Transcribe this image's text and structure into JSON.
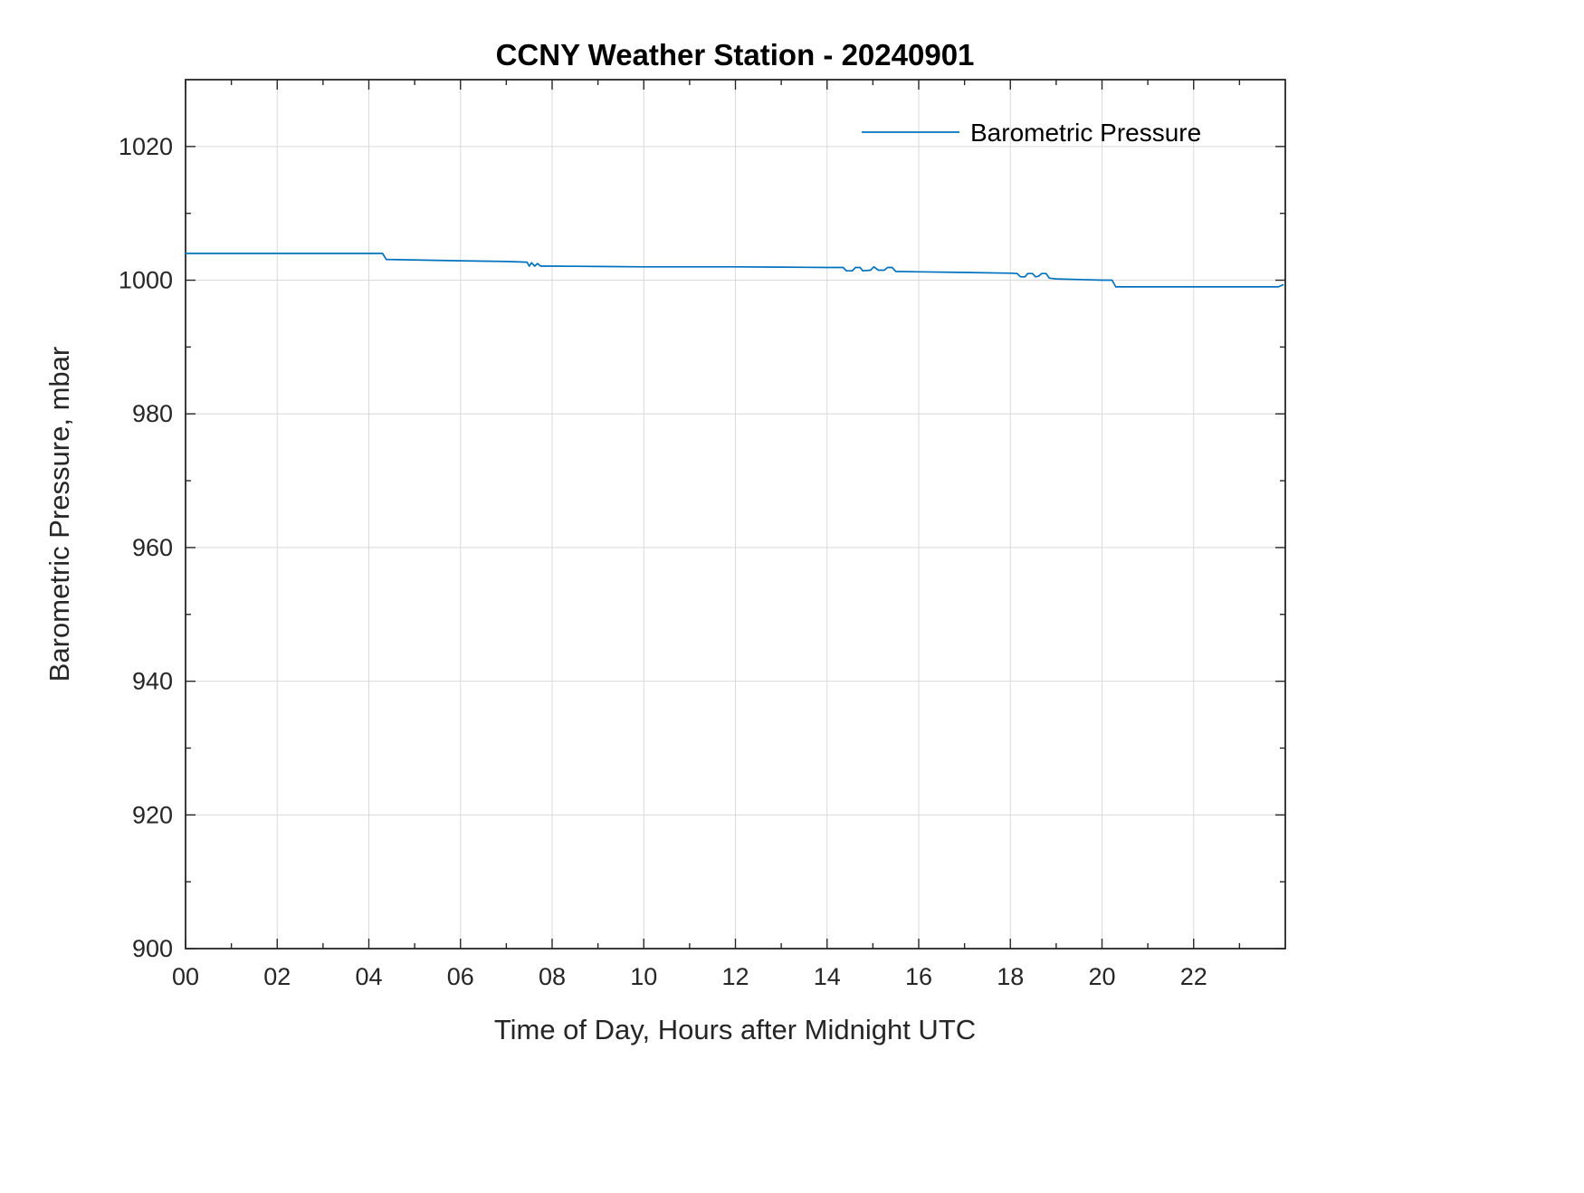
{
  "chart_data": {
    "type": "line",
    "title": "CCNY Weather Station - 20240901",
    "xlabel": "Time of Day, Hours after Midnight UTC",
    "ylabel": "Barometric Pressure, mbar",
    "xlim": [
      0,
      24
    ],
    "ylim": [
      900,
      1030
    ],
    "grid": true,
    "xticks": [
      0,
      2,
      4,
      6,
      8,
      10,
      12,
      14,
      16,
      18,
      20,
      22
    ],
    "xtick_labels": [
      "00",
      "02",
      "04",
      "06",
      "08",
      "10",
      "12",
      "14",
      "16",
      "18",
      "20",
      "22"
    ],
    "x_minor_ticks": [
      1,
      3,
      5,
      7,
      9,
      11,
      13,
      15,
      17,
      19,
      21,
      23
    ],
    "yticks": [
      900,
      920,
      940,
      960,
      980,
      1000,
      1020
    ],
    "y_minor_ticks": [
      910,
      930,
      950,
      970,
      990,
      1010
    ],
    "legend": {
      "position": "top-right",
      "entries": [
        {
          "label": "Barometric Pressure",
          "color": "#0072BD"
        }
      ]
    },
    "series": [
      {
        "name": "Barometric Pressure",
        "color": "#0072BD",
        "units": "mbar",
        "x": [
          0,
          4.3,
          4.38,
          5.2,
          6.0,
          7.0,
          7.45,
          7.5,
          7.55,
          7.62,
          7.68,
          7.75,
          8.0,
          9.0,
          10.0,
          11.0,
          12.0,
          13.0,
          14.0,
          14.35,
          14.42,
          14.55,
          14.62,
          14.72,
          14.78,
          14.95,
          15.02,
          15.12,
          15.25,
          15.32,
          15.42,
          15.5,
          16.0,
          17.0,
          18.0,
          18.15,
          18.22,
          18.32,
          18.38,
          18.48,
          18.55,
          18.62,
          18.68,
          18.78,
          18.85,
          19.0,
          19.5,
          20.0,
          20.22,
          20.3,
          21.0,
          22.0,
          23.0,
          23.85,
          23.95
        ],
        "y": [
          1004,
          1004,
          1003.1,
          1003.0,
          1002.9,
          1002.8,
          1002.7,
          1002.1,
          1002.6,
          1002.1,
          1002.5,
          1002.1,
          1002.1,
          1002.05,
          1002.0,
          1002.0,
          1002.0,
          1001.95,
          1001.9,
          1001.9,
          1001.4,
          1001.4,
          1001.9,
          1001.9,
          1001.4,
          1001.5,
          1002.0,
          1001.5,
          1001.5,
          1001.9,
          1001.9,
          1001.3,
          1001.25,
          1001.15,
          1001.05,
          1001.0,
          1000.5,
          1000.5,
          1001.0,
          1001.0,
          1000.5,
          1000.6,
          1001.0,
          1001.0,
          1000.3,
          1000.2,
          1000.1,
          1000.0,
          1000.0,
          999.0,
          999.0,
          999.0,
          999.0,
          999.0,
          999.3
        ]
      }
    ]
  },
  "colors": {
    "line": "#0072BD",
    "grid": "#d9d9d9",
    "axis": "#262626",
    "background": "#ffffff"
  }
}
